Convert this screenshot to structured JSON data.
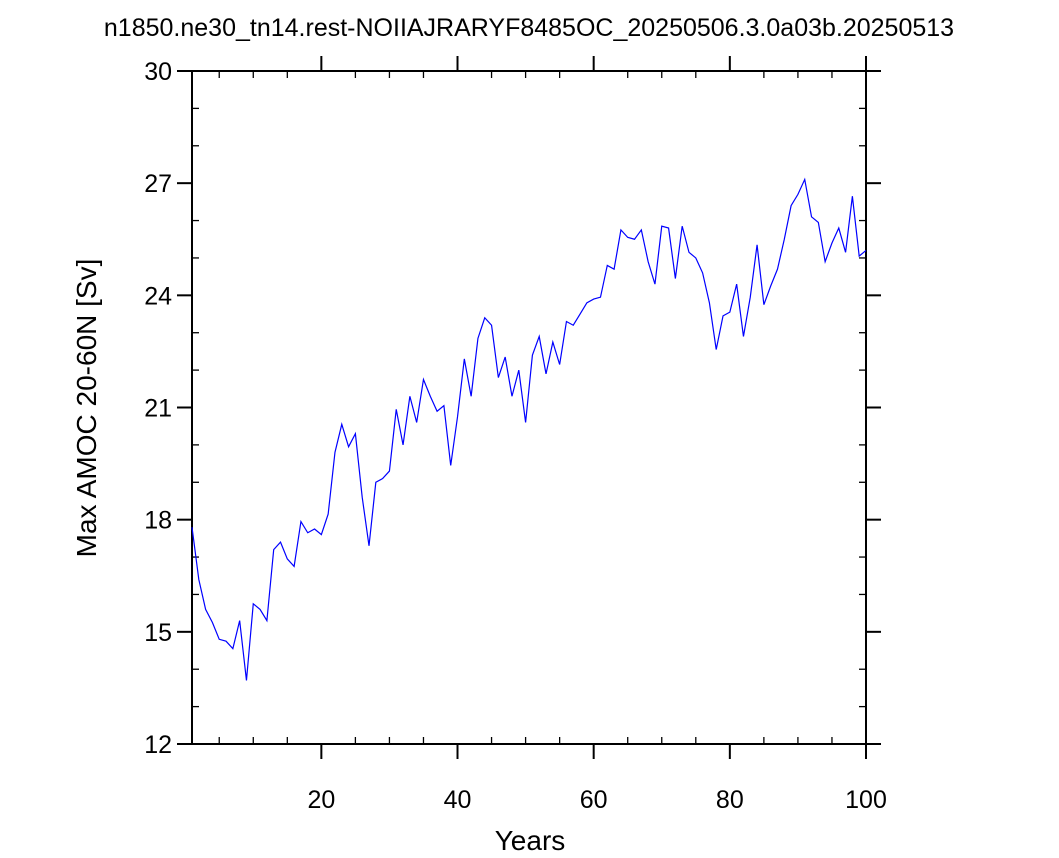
{
  "chart_data": {
    "type": "line",
    "title": "n1850.ne30_tn14.rest-NOIIAJRARYF8485OC_20250506.3.0a03b.20250513",
    "xlabel": "Years",
    "ylabel": "Max AMOC 20-60N [Sv]",
    "xlim": [
      1,
      100
    ],
    "ylim": [
      12,
      30
    ],
    "x_ticks": [
      20,
      40,
      60,
      80,
      100
    ],
    "y_ticks": [
      12,
      15,
      18,
      21,
      24,
      27,
      30
    ],
    "x_tick_labels": [
      "20",
      "40",
      "60",
      "80",
      "100"
    ],
    "y_tick_labels": [
      "12",
      "15",
      "18",
      "21",
      "24",
      "27",
      "30"
    ],
    "grid": false,
    "line_color": "#0000ff",
    "series": [
      {
        "x": [
          1,
          2,
          3,
          4,
          5,
          6,
          7,
          8,
          9,
          10,
          11,
          12,
          13,
          14,
          15,
          16,
          17,
          18,
          19,
          20,
          21,
          22,
          23,
          24,
          25,
          26,
          27,
          28,
          29,
          30,
          31,
          32,
          33,
          34,
          35,
          36,
          37,
          38,
          39,
          40,
          41,
          42,
          43,
          44,
          45,
          46,
          47,
          48,
          49,
          50,
          51,
          52,
          53,
          54,
          55,
          56,
          57,
          58,
          59,
          60,
          61,
          62,
          63,
          64,
          65,
          66,
          67,
          68,
          69,
          70,
          71,
          72,
          73,
          74,
          75,
          76,
          77,
          78,
          79,
          80,
          81,
          82,
          83,
          84,
          85,
          86,
          87,
          88,
          89,
          90,
          91,
          92,
          93,
          94,
          95,
          96,
          97,
          98,
          99,
          100
        ],
        "values": [
          17.8,
          16.4,
          15.6,
          15.25,
          14.8,
          14.75,
          14.55,
          15.3,
          13.7,
          15.75,
          15.6,
          15.3,
          17.2,
          17.4,
          16.95,
          16.75,
          17.95,
          17.65,
          17.75,
          17.6,
          18.15,
          19.8,
          20.55,
          19.95,
          20.3,
          18.6,
          17.3,
          19.0,
          19.1,
          19.3,
          20.95,
          20.0,
          21.3,
          20.6,
          21.75,
          21.3,
          20.9,
          21.05,
          19.45,
          20.75,
          22.3,
          21.3,
          22.85,
          23.4,
          23.2,
          21.8,
          22.35,
          21.3,
          22.0,
          20.6,
          22.4,
          22.9,
          21.9,
          22.75,
          22.15,
          23.3,
          23.2,
          23.5,
          23.8,
          23.9,
          23.95,
          24.8,
          24.7,
          25.75,
          25.55,
          25.5,
          25.75,
          24.9,
          24.3,
          25.85,
          25.8,
          24.45,
          25.85,
          25.15,
          25.0,
          24.6,
          23.8,
          22.55,
          23.45,
          23.55,
          24.3,
          22.9,
          23.95,
          25.35,
          23.75,
          24.25,
          24.7,
          25.5,
          26.4,
          26.7,
          27.1,
          26.1,
          25.95,
          24.9,
          25.4,
          25.8,
          25.15,
          26.65,
          25.05,
          25.2
        ]
      }
    ]
  }
}
